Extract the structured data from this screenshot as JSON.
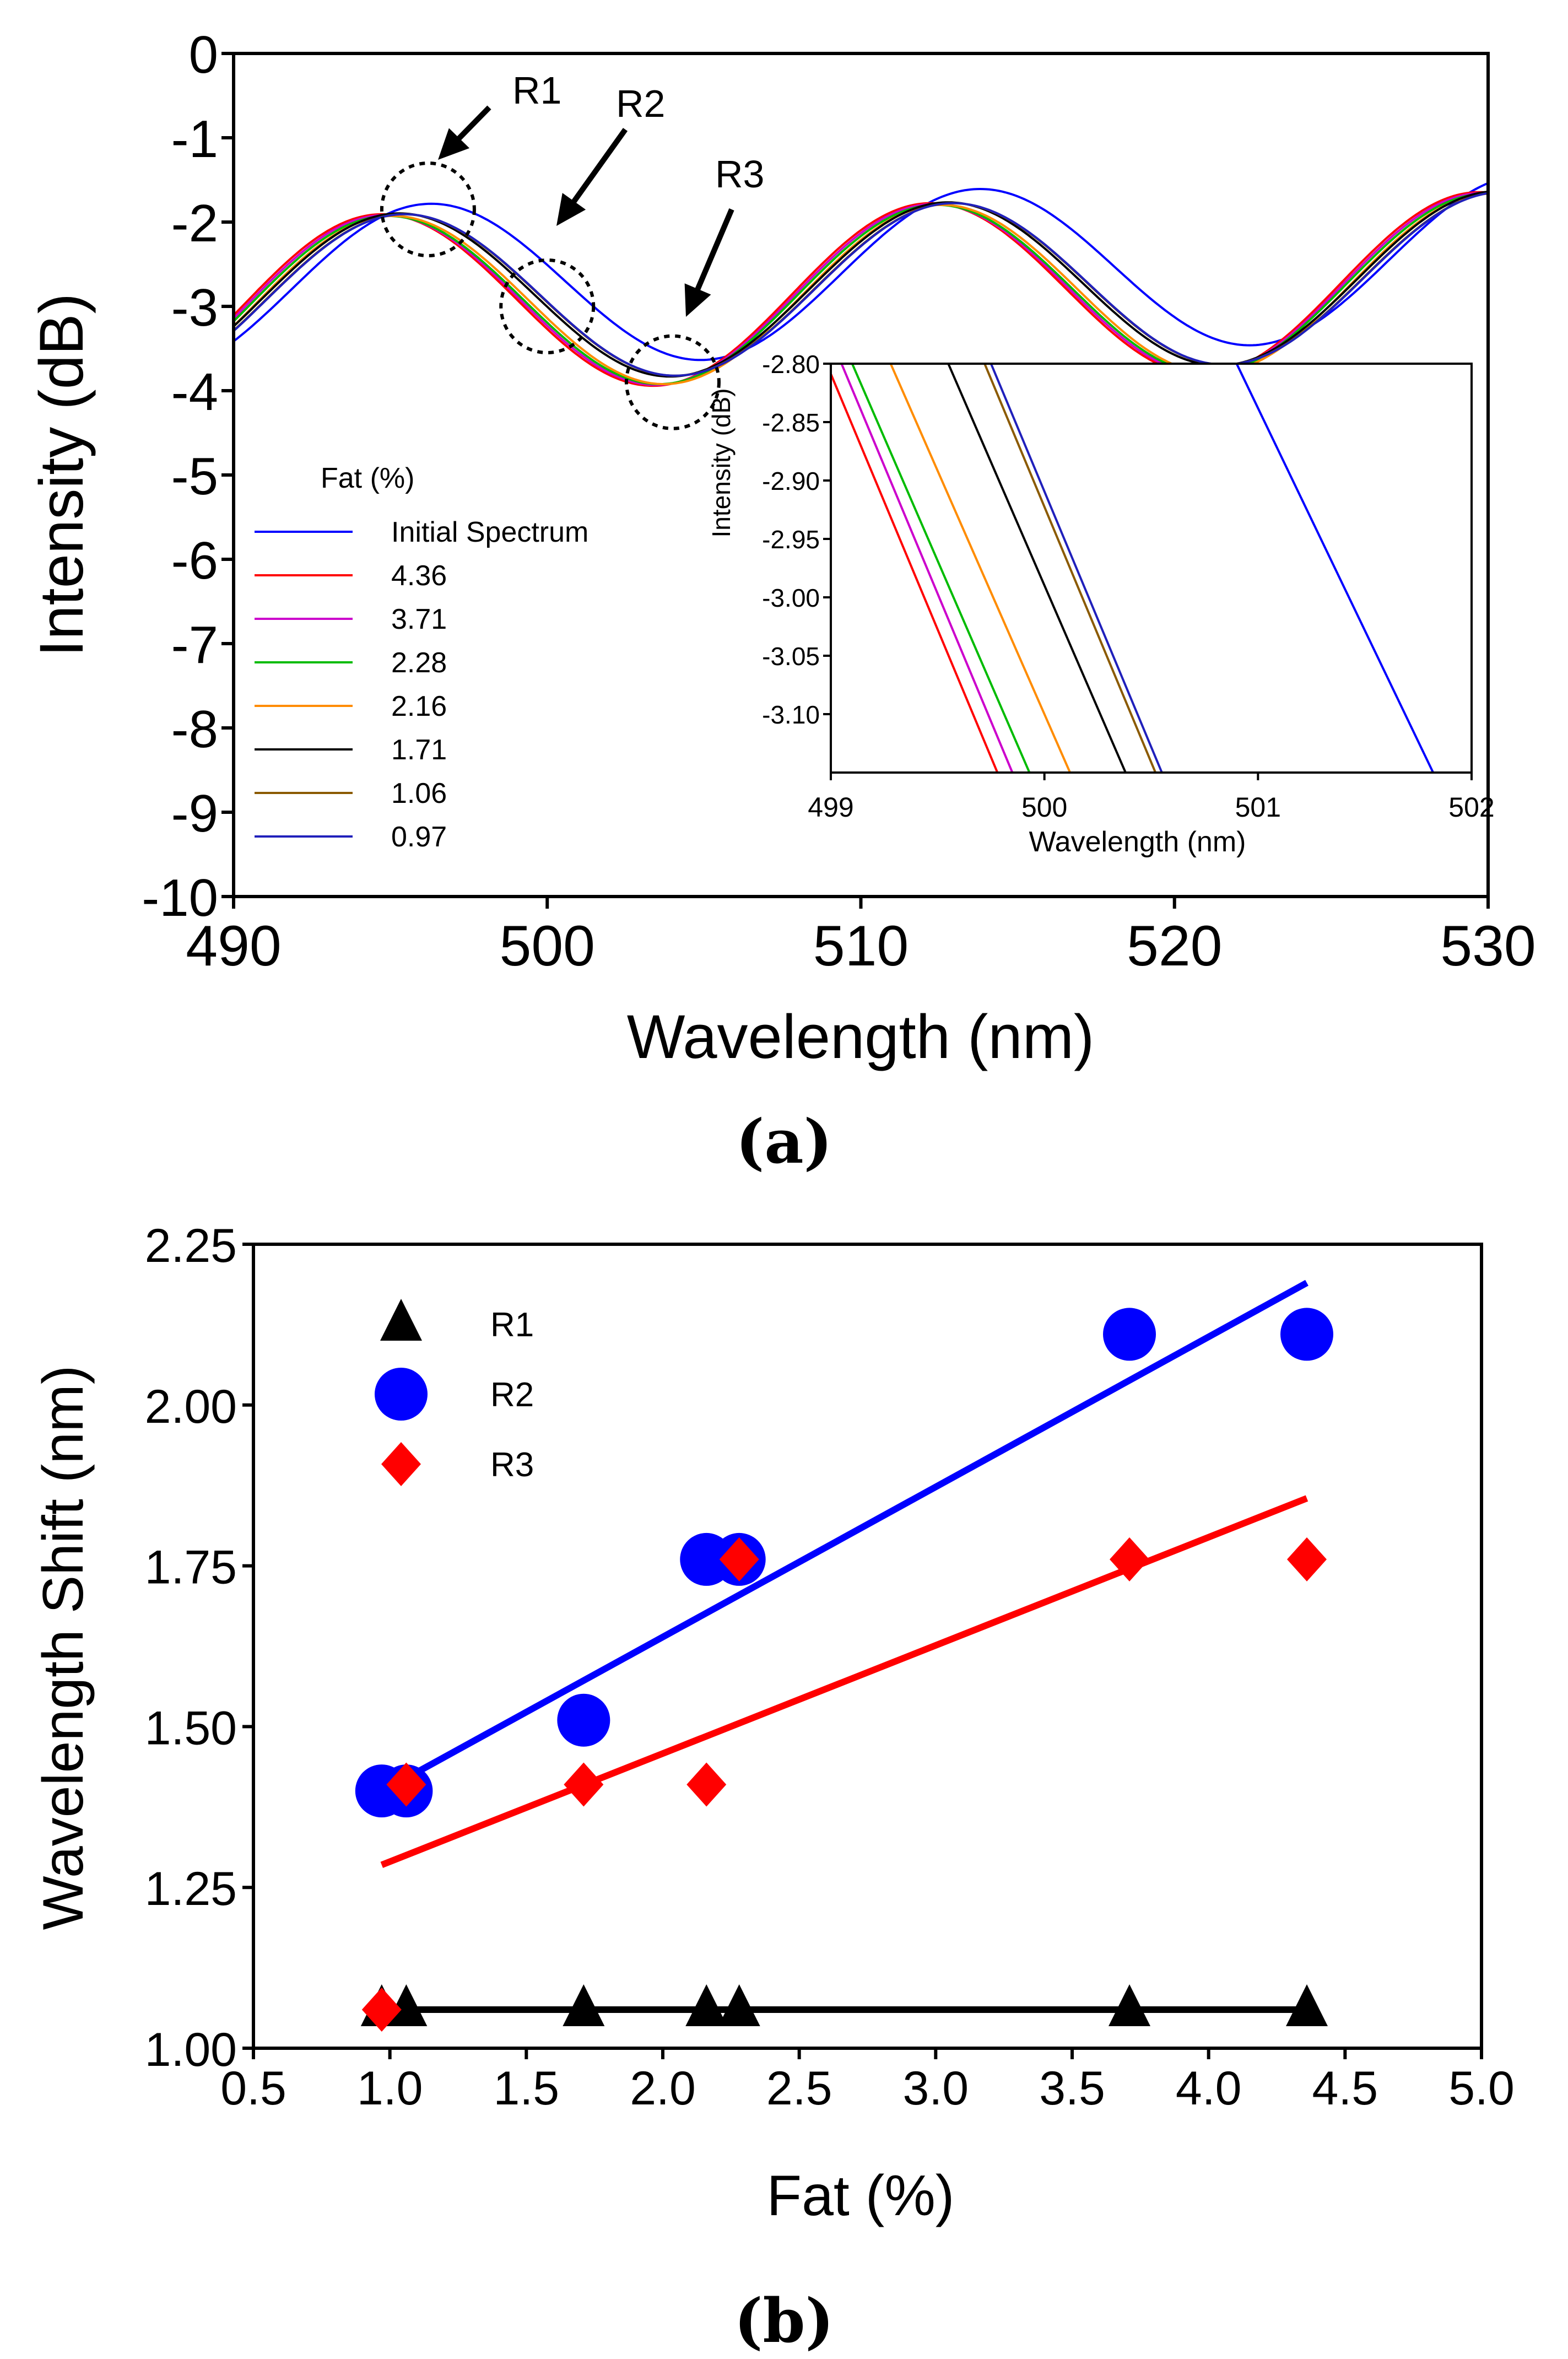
{
  "chart_data": [
    {
      "panel": "(a)",
      "type": "line",
      "xlabel": "Wavelength (nm)",
      "ylabel": "Intensity (dB)",
      "xlim": [
        490,
        530
      ],
      "ylim": [
        -10,
        0
      ],
      "xticks": [
        "490",
        "500",
        "510",
        "520",
        "530"
      ],
      "yticks": [
        "0",
        "-1",
        "-2",
        "-3",
        "-4",
        "-5",
        "-6",
        "-7",
        "-8",
        "-9",
        "-10"
      ],
      "legend_title": "Fat (%)",
      "series": [
        {
          "name": "Initial Spectrum",
          "color": "#0000ff",
          "shift": 1.55,
          "amp": 0.97,
          "c": -2.65,
          "ramp": 0.2
        },
        {
          "name": "4.36",
          "color": "#ff0000",
          "shift": 0.0,
          "amp": 1.05,
          "c": -2.88,
          "ramp": 0.15
        },
        {
          "name": "3.71",
          "color": "#cc00cc",
          "shift": 0.1,
          "amp": 1.04,
          "c": -2.88,
          "ramp": 0.15
        },
        {
          "name": "2.28",
          "color": "#00bb00",
          "shift": 0.2,
          "amp": 1.03,
          "c": -2.88,
          "ramp": 0.15
        },
        {
          "name": "2.16",
          "color": "#ff8c00",
          "shift": 0.35,
          "amp": 1.03,
          "c": -2.88,
          "ramp": 0.15
        },
        {
          "name": "1.71",
          "color": "#000000",
          "shift": 0.55,
          "amp": 1.0,
          "c": -2.82,
          "ramp": 0.15
        },
        {
          "name": "1.06",
          "color": "#8b5a00",
          "shift": 0.7,
          "amp": 0.99,
          "c": -2.82,
          "ramp": 0.15
        },
        {
          "name": "0.97",
          "color": "#2020bb",
          "shift": 0.72,
          "amp": 0.99,
          "c": -2.82,
          "ramp": 0.15
        }
      ],
      "annotations": [
        {
          "label": "R1",
          "x": 496.2,
          "y": -1.85
        },
        {
          "label": "R2",
          "x": 500.0,
          "y": -3.0
        },
        {
          "label": "R3",
          "x": 504.0,
          "y": -3.9
        }
      ],
      "inset": {
        "xlabel": "Wavelength (nm)",
        "ylabel": "Intensity (dB)",
        "xlim": [
          499,
          502
        ],
        "ylim": [
          -3.15,
          -2.8
        ],
        "xticks": [
          "499",
          "500",
          "501",
          "502"
        ],
        "yticks": [
          "-2.80",
          "-2.85",
          "-2.90",
          "-2.95",
          "-3.00",
          "-3.05",
          "-3.10"
        ],
        "lines": [
          {
            "color": "#ff0000",
            "x_top": 498.98,
            "x_bottom": 499.78
          },
          {
            "color": "#cc00cc",
            "x_top": 499.05,
            "x_bottom": 499.85
          },
          {
            "color": "#00bb00",
            "x_top": 499.1,
            "x_bottom": 499.93
          },
          {
            "color": "#ff8c00",
            "x_top": 499.28,
            "x_bottom": 500.12
          },
          {
            "color": "#000000",
            "x_top": 499.55,
            "x_bottom": 500.38
          },
          {
            "color": "#8b5a00",
            "x_top": 499.72,
            "x_bottom": 500.52
          },
          {
            "color": "#2020bb",
            "x_top": 499.75,
            "x_bottom": 500.55
          },
          {
            "color": "#0000ff",
            "x_top": 500.9,
            "x_bottom": 501.82
          }
        ]
      }
    },
    {
      "panel": "(b)",
      "type": "scatter",
      "xlabel": "Fat (%)",
      "ylabel": "Wavelength Shift (nm)",
      "xlim": [
        0.5,
        5.0
      ],
      "ylim": [
        1.0,
        2.25
      ],
      "xticks": [
        "0.5",
        "1.0",
        "1.5",
        "2.0",
        "2.5",
        "3.0",
        "3.5",
        "4.0",
        "4.5",
        "5.0"
      ],
      "yticks": [
        "1.00",
        "1.25",
        "1.50",
        "1.75",
        "2.00",
        "2.25"
      ],
      "series": [
        {
          "name": "R1",
          "marker": "triangle",
          "color": "#000000",
          "x": [
            0.97,
            1.06,
            1.71,
            2.16,
            2.28,
            3.71,
            4.36
          ],
          "y": [
            1.06,
            1.06,
            1.06,
            1.06,
            1.06,
            1.06,
            1.06
          ],
          "fit": [
            [
              0.97,
              1.06
            ],
            [
              4.36,
              1.06
            ]
          ]
        },
        {
          "name": "R2",
          "marker": "circle",
          "color": "#0000ff",
          "x": [
            0.97,
            1.06,
            1.71,
            2.16,
            2.28,
            3.71,
            4.36
          ],
          "y": [
            1.4,
            1.4,
            1.51,
            1.76,
            1.76,
            2.11,
            2.11
          ],
          "fit": [
            [
              1.06,
              1.42
            ],
            [
              4.36,
              2.19
            ]
          ]
        },
        {
          "name": "R3",
          "marker": "diamond",
          "color": "#ff0000",
          "x": [
            0.97,
            1.06,
            1.71,
            2.16,
            2.28,
            3.71,
            4.36
          ],
          "y": [
            1.06,
            1.41,
            1.41,
            1.41,
            1.76,
            1.76,
            1.76
          ],
          "fit": [
            [
              0.97,
              1.285
            ],
            [
              4.36,
              1.855
            ]
          ]
        }
      ]
    }
  ]
}
